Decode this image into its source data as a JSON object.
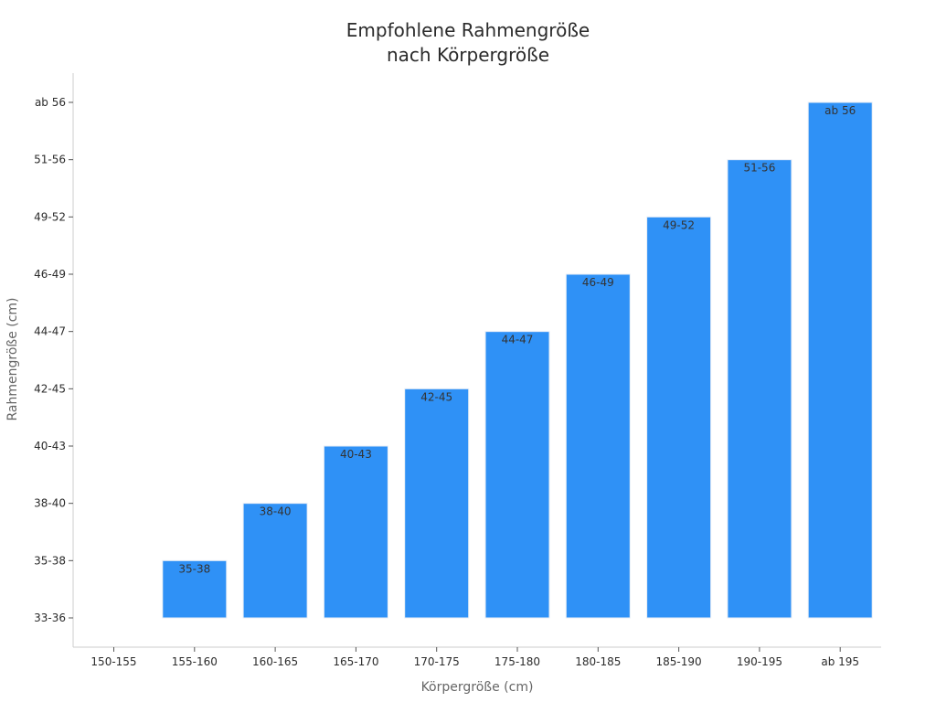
{
  "chart_data": {
    "type": "bar",
    "title_lines": [
      "Empfohlene Rahmengröße",
      "nach Körpergröße"
    ],
    "xlabel": "Körpergröße (cm)",
    "ylabel": "Rahmengröße (cm)",
    "categories": [
      "150-155",
      "155-160",
      "160-165",
      "165-170",
      "170-175",
      "175-180",
      "180-185",
      "185-190",
      "190-195",
      "ab 195"
    ],
    "y_categories": [
      "33-36",
      "35-38",
      "38-40",
      "40-43",
      "42-45",
      "44-47",
      "46-49",
      "49-52",
      "51-56",
      "ab 56"
    ],
    "values": [
      "33-36",
      "35-38",
      "38-40",
      "40-43",
      "42-45",
      "44-47",
      "46-49",
      "49-52",
      "51-56",
      "ab 56"
    ],
    "bar_labels": [
      null,
      "35-38",
      "38-40",
      "40-43",
      "42-45",
      "44-47",
      "46-49",
      "49-52",
      "51-56",
      "ab 56"
    ],
    "bar_color": "#2f91f6",
    "bar_edge_color": "#e8eef6",
    "grid": false,
    "legend": "none"
  }
}
